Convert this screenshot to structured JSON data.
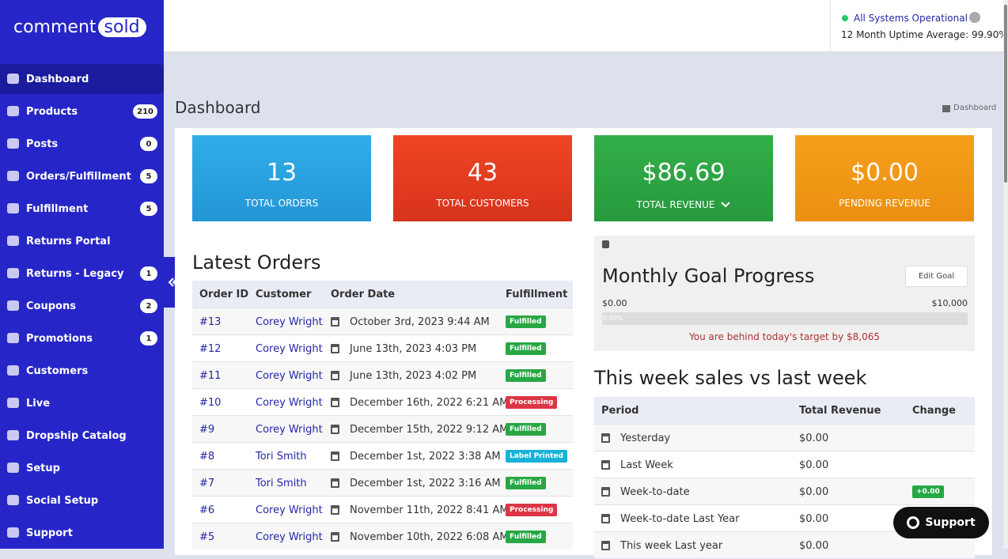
{
  "logo": {
    "left": "comment",
    "right": "sold"
  },
  "status": {
    "text": "All Systems Operational",
    "uptime": "12 Month Uptime Average: 99.90%"
  },
  "sidebar": {
    "items": [
      {
        "label": "Dashboard"
      },
      {
        "label": "Products",
        "badge": 210
      },
      {
        "label": "Posts",
        "badge": 0
      },
      {
        "label": "Orders/Fulfillment",
        "badge": 5
      },
      {
        "label": "Fulfillment",
        "badge": 5
      },
      {
        "label": "Returns Portal"
      },
      {
        "label": "Returns - Legacy",
        "badge": 1
      },
      {
        "label": "Coupons",
        "badge": 2
      },
      {
        "label": "Promotions",
        "badge": 1
      },
      {
        "label": "Customers"
      },
      {
        "label": "Live"
      },
      {
        "label": "Dropship Catalog"
      },
      {
        "label": "Setup"
      },
      {
        "label": "Social Setup"
      },
      {
        "label": "Support"
      }
    ]
  },
  "header": {
    "title": "Dashboard",
    "breadcrumb": "Dashboard"
  },
  "stats": [
    {
      "value": "13",
      "label": "TOTAL ORDERS"
    },
    {
      "value": "43",
      "label": "TOTAL CUSTOMERS"
    },
    {
      "value": "$86.69",
      "label": "TOTAL REVENUE"
    },
    {
      "value": "$0.00",
      "label": "PENDING REVENUE"
    }
  ],
  "latest_orders": {
    "title": "Latest Orders",
    "columns": [
      "Order ID",
      "Customer",
      "Order Date",
      "Fulfillment"
    ],
    "rows": [
      [
        "#13",
        "Corey Wright",
        "October 3rd, 2023 9:44 AM",
        "Fulfilled"
      ],
      [
        "#12",
        "Corey Wright",
        "June 13th, 2023 4:03 PM",
        "Fulfilled"
      ],
      [
        "#11",
        "Corey Wright",
        "June 13th, 2023 4:02 PM",
        "Fulfilled"
      ],
      [
        "#10",
        "Corey Wright",
        "December 16th, 2022 6:21 AM",
        "Processing"
      ],
      [
        "#9",
        "Corey Wright",
        "December 15th, 2022 9:12 AM",
        "Fulfilled"
      ],
      [
        "#8",
        "Tori Smith",
        "December 1st, 2022 3:38 AM",
        "Label Printed"
      ],
      [
        "#7",
        "Tori Smith",
        "December 1st, 2022 3:16 AM",
        "Fulfilled"
      ],
      [
        "#6",
        "Corey Wright",
        "November 11th, 2022 8:41 AM",
        "Processing"
      ],
      [
        "#5",
        "Corey Wright",
        "November 10th, 2022 6:08 AM",
        "Fulfilled"
      ]
    ]
  },
  "goal": {
    "title": "Monthly Goal Progress",
    "edit": "Edit Goal",
    "min": "$0.00",
    "max": "$10,000",
    "progress": "0.00%",
    "message": "You are behind today's target by $8,065"
  },
  "weekly": {
    "title": "This week sales vs last week",
    "columns": [
      "Period",
      "Total Revenue",
      "Change"
    ],
    "rows": [
      {
        "period": "Yesterday",
        "revenue": "$0.00"
      },
      {
        "period": "Last Week",
        "revenue": "$0.00"
      },
      {
        "period": "Week-to-date",
        "revenue": "$0.00",
        "change": "+0.00"
      },
      {
        "period": "Week-to-date Last Year",
        "revenue": "$0.00"
      },
      {
        "period": "This week Last year",
        "revenue": "$0.00"
      }
    ]
  },
  "support_button": "Support"
}
